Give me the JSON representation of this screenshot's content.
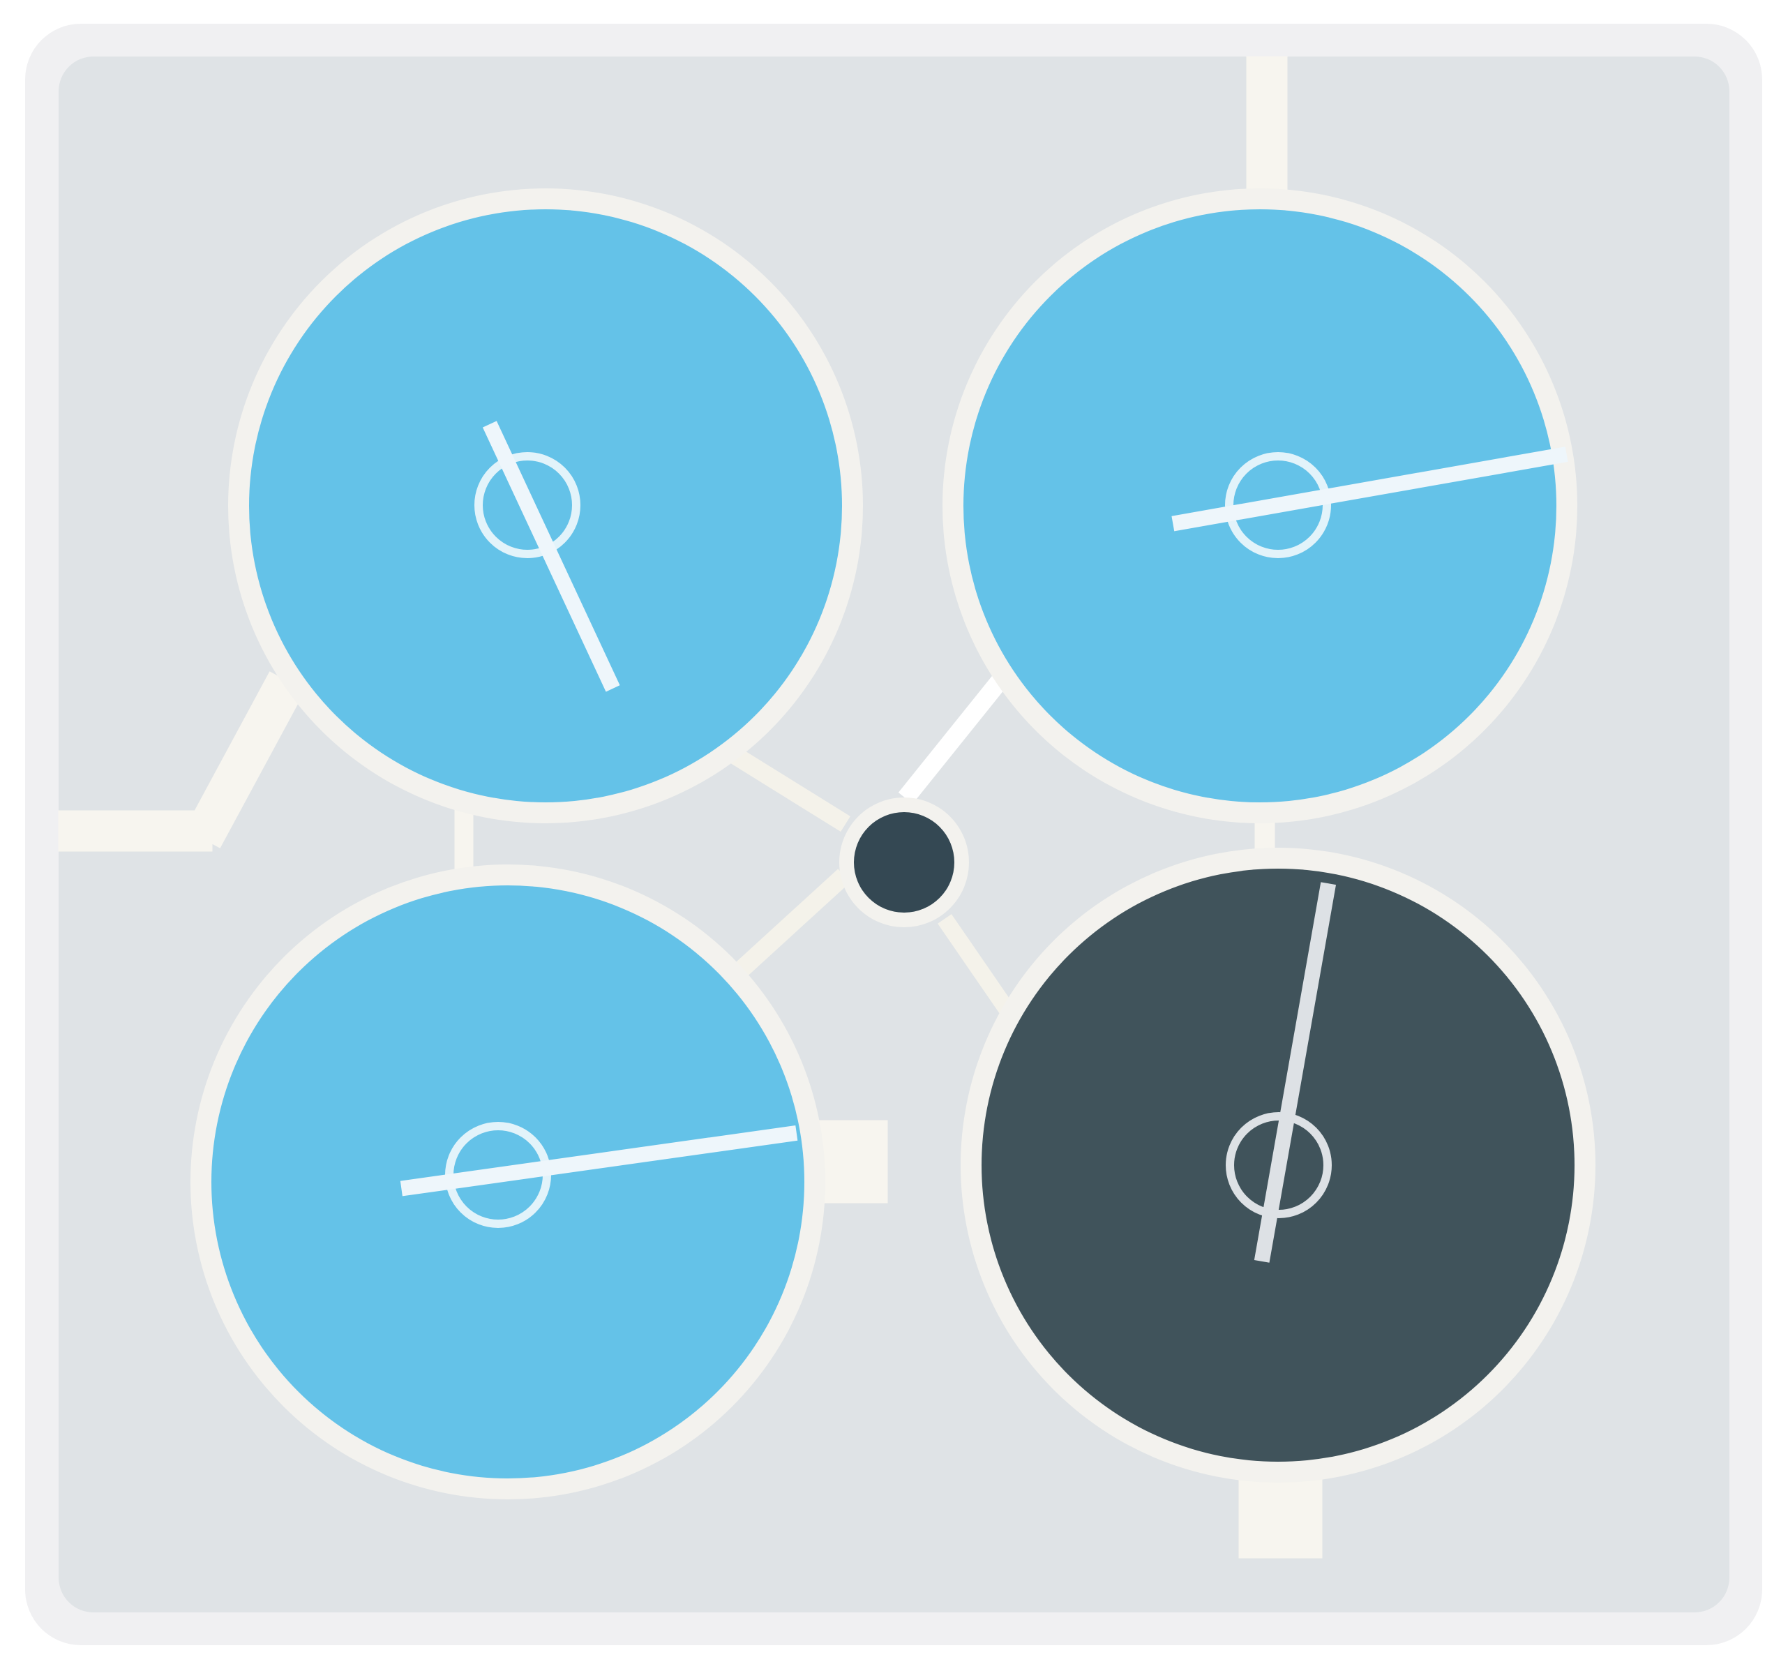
{
  "puzzle": {
    "type": "rotating-wheels-connector",
    "colors": {
      "page_background": "#ffffff",
      "board_frame": "#f0f0f2",
      "board_fill": "#dfe3e6",
      "pipe": "#f7f5ef",
      "wheel_rim": "#f3f2ee",
      "wheel_active": "#64c2e8",
      "wheel_inactive": "#40535b",
      "hub_fill": "#344853",
      "pointer": "#eef6fb",
      "pointer_dark": "#dde1e5"
    },
    "wheels": [
      {
        "id": "top-left",
        "state": "active",
        "pointer_angle_deg": 245
      },
      {
        "id": "top-right",
        "state": "active",
        "pointer_angle_deg": 170
      },
      {
        "id": "bottom-left",
        "state": "active",
        "pointer_angle_deg": 172
      },
      {
        "id": "bottom-right",
        "state": "inactive",
        "pointer_angle_deg": 100
      }
    ],
    "hub": {
      "state": "center-node"
    }
  }
}
